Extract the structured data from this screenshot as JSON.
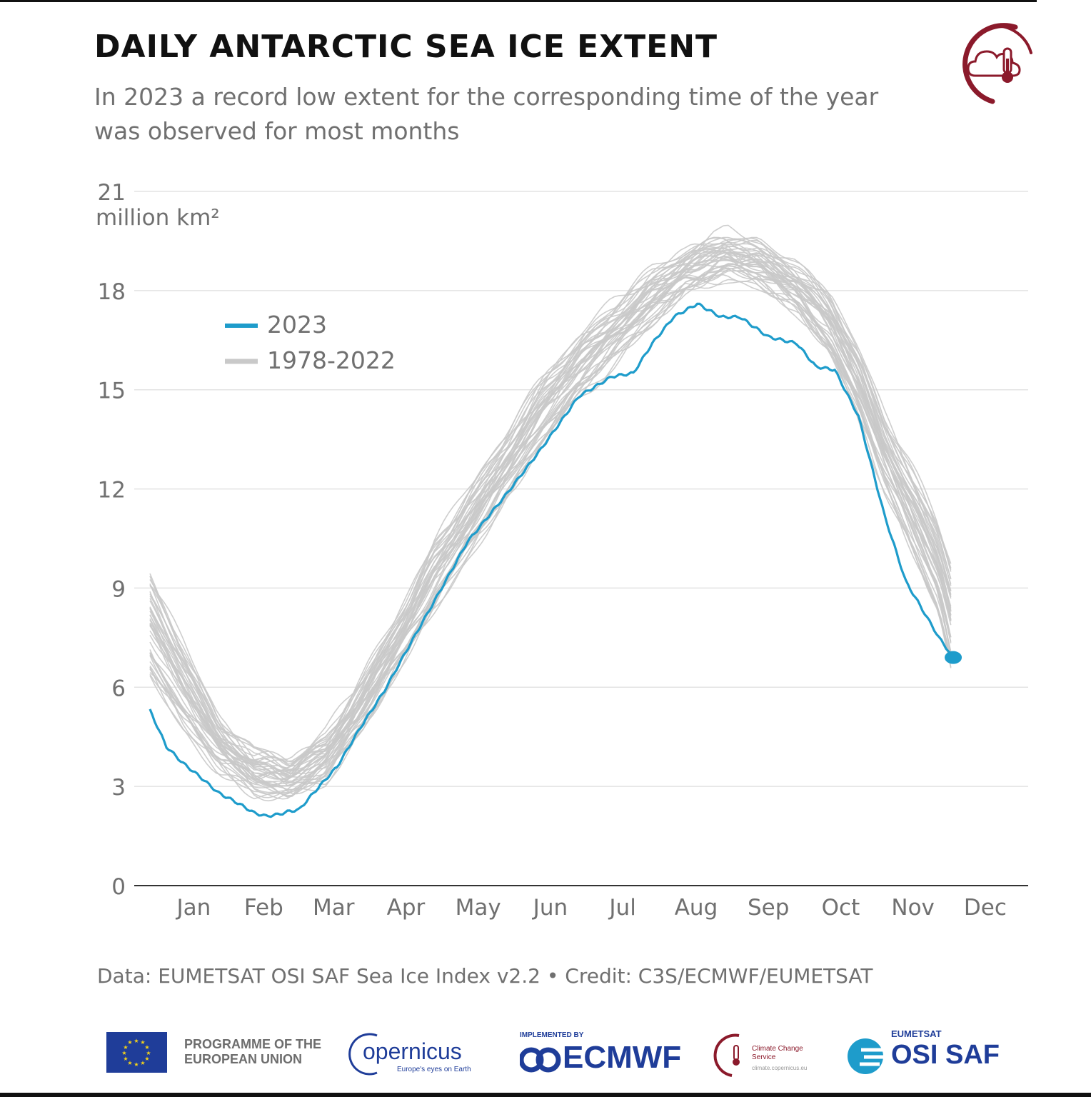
{
  "header": {
    "title": "DAILY ANTARCTIC SEA ICE EXTENT",
    "subtitle": "In 2023 a record low extent for the corresponding time of the year was observed for most months"
  },
  "source": "Data: EUMETSAT OSI SAF Sea Ice Index v2.2 • Credit: C3S/ECMWF/EUMETSAT",
  "logos": {
    "programme": "PROGRAMME OF THE EUROPEAN UNION",
    "copernicus": "opernicus",
    "copernicus_tagline": "Europe's eyes on Earth",
    "ecmwf_small": "IMPLEMENTED BY",
    "ecmwf": "ECMWF",
    "c3s": "Climate Change Service",
    "c3s_url": "climate.copernicus.eu",
    "eumetsat": "EUMETSAT",
    "osisaf": "OSI SAF"
  },
  "colors": {
    "series_2023": "#1e9ccb",
    "series_hist": "#c9c9c9",
    "brand_red": "#8b1a2b",
    "brand_blue": "#1f3d99",
    "text_gray": "#707070"
  },
  "chart_data": {
    "type": "line",
    "title": "DAILY ANTARCTIC SEA ICE EXTENT",
    "ylabel": "million km²",
    "ylim": [
      0,
      21
    ],
    "yticks": [
      0,
      3,
      6,
      9,
      12,
      15,
      18,
      21
    ],
    "xlim": [
      1,
      365
    ],
    "x_unit": "day of year",
    "xtick_labels": [
      "Jan",
      "Feb",
      "Mar",
      "Apr",
      "May",
      "Jun",
      "Jul",
      "Aug",
      "Sep",
      "Oct",
      "Nov",
      "Dec"
    ],
    "grid": true,
    "legend": {
      "position": "upper-left",
      "entries": [
        "2023",
        "1978-2022"
      ]
    },
    "series": [
      {
        "name": "2023",
        "color": "#1e9ccb",
        "points": [
          [
            1,
            5.3
          ],
          [
            8,
            4.2
          ],
          [
            15,
            3.7
          ],
          [
            22,
            3.3
          ],
          [
            30,
            2.8
          ],
          [
            38,
            2.5
          ],
          [
            45,
            2.2
          ],
          [
            50,
            2.1
          ],
          [
            55,
            2.15
          ],
          [
            60,
            2.25
          ],
          [
            64,
            2.3
          ],
          [
            70,
            2.8
          ],
          [
            80,
            3.6
          ],
          [
            90,
            4.8
          ],
          [
            100,
            5.9
          ],
          [
            110,
            7.2
          ],
          [
            121,
            8.6
          ],
          [
            135,
            10.4
          ],
          [
            151,
            11.8
          ],
          [
            166,
            13.2
          ],
          [
            182,
            14.8
          ],
          [
            196,
            15.4
          ],
          [
            205,
            15.5
          ],
          [
            213,
            16.4
          ],
          [
            222,
            17.2
          ],
          [
            232,
            17.6
          ],
          [
            242,
            17.2
          ],
          [
            250,
            17.2
          ],
          [
            262,
            16.6
          ],
          [
            274,
            16.4
          ],
          [
            282,
            15.7
          ],
          [
            290,
            15.6
          ],
          [
            300,
            14.2
          ],
          [
            311,
            11.2
          ],
          [
            320,
            9.2
          ],
          [
            334,
            7.5
          ],
          [
            340,
            6.9
          ]
        ]
      },
      {
        "name": "1978-2022",
        "color": "#c9c9c9",
        "min": [
          [
            1,
            5.8
          ],
          [
            15,
            4.3
          ],
          [
            30,
            3.3
          ],
          [
            45,
            2.6
          ],
          [
            60,
            2.5
          ],
          [
            75,
            3.0
          ],
          [
            91,
            4.5
          ],
          [
            110,
            6.8
          ],
          [
            121,
            8.0
          ],
          [
            135,
            9.6
          ],
          [
            152,
            11.5
          ],
          [
            166,
            13.0
          ],
          [
            182,
            14.5
          ],
          [
            196,
            15.5
          ],
          [
            213,
            16.8
          ],
          [
            227,
            17.8
          ],
          [
            244,
            18.2
          ],
          [
            258,
            18.0
          ],
          [
            274,
            17.2
          ],
          [
            288,
            15.8
          ],
          [
            300,
            13.9
          ],
          [
            311,
            11.7
          ],
          [
            322,
            9.8
          ],
          [
            334,
            7.8
          ],
          [
            340,
            5.6
          ]
        ],
        "max": [
          [
            1,
            9.8
          ],
          [
            15,
            7.8
          ],
          [
            30,
            5.3
          ],
          [
            45,
            4.2
          ],
          [
            60,
            3.9
          ],
          [
            75,
            4.8
          ],
          [
            91,
            6.6
          ],
          [
            110,
            8.9
          ],
          [
            121,
            10.7
          ],
          [
            135,
            12.3
          ],
          [
            152,
            14.0
          ],
          [
            166,
            15.5
          ],
          [
            182,
            16.9
          ],
          [
            196,
            17.9
          ],
          [
            213,
            18.8
          ],
          [
            227,
            19.3
          ],
          [
            244,
            20.0
          ],
          [
            258,
            19.7
          ],
          [
            274,
            18.9
          ],
          [
            288,
            18.1
          ],
          [
            300,
            16.6
          ],
          [
            311,
            14.6
          ],
          [
            322,
            13.1
          ],
          [
            334,
            11.2
          ],
          [
            340,
            10.0
          ]
        ]
      }
    ]
  }
}
